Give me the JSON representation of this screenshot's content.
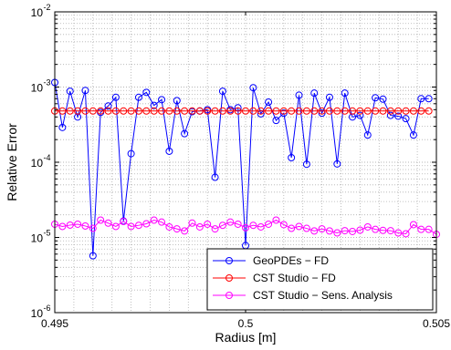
{
  "chart_data": {
    "type": "line",
    "xlabel": "Radius [m]",
    "ylabel": "Relative Error",
    "xlim": [
      0.495,
      0.505
    ],
    "ylim": [
      1e-06,
      0.01
    ],
    "yscale": "log",
    "grid": true,
    "legend_position": "bottom-right",
    "x_ticks": [
      {
        "value": 0.495,
        "label": "0.495"
      },
      {
        "value": 0.5,
        "label": "0.5"
      },
      {
        "value": 0.505,
        "label": "0.505"
      }
    ],
    "y_ticks": [
      {
        "value": 1e-06,
        "base": "10",
        "exp": "-6"
      },
      {
        "value": 1e-05,
        "base": "10",
        "exp": "-5"
      },
      {
        "value": 0.0001,
        "base": "10",
        "exp": "-4"
      },
      {
        "value": 0.001,
        "base": "10",
        "exp": "-3"
      },
      {
        "value": 0.01,
        "base": "10",
        "exp": "-2"
      }
    ],
    "series": [
      {
        "name": "GeoPDEs − FD",
        "color": "#0000ff",
        "x": [
          0.495,
          0.4952,
          0.4954,
          0.4956,
          0.4958,
          0.496,
          0.4962,
          0.4964,
          0.4966,
          0.4968,
          0.497,
          0.4972,
          0.4974,
          0.4976,
          0.4978,
          0.498,
          0.4982,
          0.4984,
          0.4986,
          0.4988,
          0.499,
          0.4992,
          0.4994,
          0.4996,
          0.4998,
          0.5,
          0.5002,
          0.5004,
          0.5006,
          0.5008,
          0.501,
          0.5012,
          0.5014,
          0.5016,
          0.5018,
          0.502,
          0.5022,
          0.5024,
          0.5026,
          0.5028,
          0.503,
          0.5032,
          0.5034,
          0.5036,
          0.5038,
          0.504,
          0.5042,
          0.5044,
          0.5046,
          0.5048
        ],
        "values": [
          0.00115,
          0.00029,
          0.00088,
          0.0004,
          0.0009,
          5.7e-06,
          0.00046,
          0.00056,
          0.00073,
          1.65e-05,
          0.00013,
          0.00073,
          0.00085,
          0.00057,
          0.00068,
          0.00014,
          0.00066,
          0.00024,
          0.00047,
          0.00048,
          0.0005,
          6.3e-05,
          0.00088,
          0.0005,
          0.00053,
          7.8e-06,
          0.00098,
          0.00044,
          0.00063,
          0.00036,
          0.00045,
          0.000115,
          0.00078,
          9.4e-05,
          0.00083,
          0.00045,
          0.00073,
          9.5e-05,
          0.00083,
          0.0004,
          0.00042,
          0.00023,
          0.00072,
          0.00069,
          0.00042,
          0.00041,
          0.00038,
          0.00023,
          0.0007,
          0.0007
        ]
      },
      {
        "name": "CST Studio − FD",
        "color": "#ff0000",
        "x": [
          0.495,
          0.4952,
          0.4954,
          0.4956,
          0.4958,
          0.496,
          0.4962,
          0.4964,
          0.4966,
          0.4968,
          0.497,
          0.4972,
          0.4974,
          0.4976,
          0.4978,
          0.498,
          0.4982,
          0.4984,
          0.4986,
          0.4988,
          0.499,
          0.4992,
          0.4994,
          0.4996,
          0.4998,
          0.5,
          0.5002,
          0.5004,
          0.5006,
          0.5008,
          0.501,
          0.5012,
          0.5014,
          0.5016,
          0.5018,
          0.502,
          0.5022,
          0.5024,
          0.5026,
          0.5028,
          0.503,
          0.5032,
          0.5034,
          0.5036,
          0.5038,
          0.504,
          0.5042,
          0.5044,
          0.5046,
          0.5048
        ],
        "values": [
          0.00048,
          0.00048,
          0.00048,
          0.00048,
          0.00048,
          0.00048,
          0.00048,
          0.00048,
          0.00048,
          0.00048,
          0.00048,
          0.00048,
          0.00048,
          0.00048,
          0.00048,
          0.00048,
          0.00048,
          0.00048,
          0.00048,
          0.00048,
          0.00048,
          0.00048,
          0.00048,
          0.00048,
          0.00048,
          0.00048,
          0.00048,
          0.00048,
          0.00048,
          0.00048,
          0.00048,
          0.00048,
          0.00048,
          0.00048,
          0.00048,
          0.00048,
          0.00048,
          0.00048,
          0.00048,
          0.00048,
          0.00048,
          0.00048,
          0.00048,
          0.00048,
          0.00048,
          0.00048,
          0.00048,
          0.00048,
          0.00048,
          0.00048
        ]
      },
      {
        "name": "CST Studio − Sens. Analysis",
        "color": "#ff00ff",
        "x": [
          0.495,
          0.4952,
          0.4954,
          0.4956,
          0.4958,
          0.496,
          0.4962,
          0.4964,
          0.4966,
          0.4968,
          0.497,
          0.4972,
          0.4974,
          0.4976,
          0.4978,
          0.498,
          0.4982,
          0.4984,
          0.4986,
          0.4988,
          0.499,
          0.4992,
          0.4994,
          0.4996,
          0.4998,
          0.5,
          0.5002,
          0.5004,
          0.5006,
          0.5008,
          0.501,
          0.5012,
          0.5014,
          0.5016,
          0.5018,
          0.502,
          0.5022,
          0.5024,
          0.5026,
          0.5028,
          0.503,
          0.5032,
          0.5034,
          0.5036,
          0.5038,
          0.504,
          0.5042,
          0.5044,
          0.5046,
          0.5048,
          0.505
        ],
        "values": [
          1.5e-05,
          1.4e-05,
          1.46e-05,
          1.5e-05,
          1.42e-05,
          1.32e-05,
          1.7e-05,
          1.55e-05,
          1.4e-05,
          1.63e-05,
          1.4e-05,
          1.45e-05,
          1.52e-05,
          1.7e-05,
          1.6e-05,
          1.38e-05,
          1.3e-05,
          1.22e-05,
          1.55e-05,
          1.38e-05,
          1.5e-05,
          1.3e-05,
          1.45e-05,
          1.6e-05,
          1.5e-05,
          1.35e-05,
          1.45e-05,
          1.38e-05,
          1.5e-05,
          1.7e-05,
          1.48e-05,
          1.32e-05,
          1.4e-05,
          1.32e-05,
          1.22e-05,
          1.3e-05,
          1.22e-05,
          1.15e-05,
          1.23e-05,
          1.2e-05,
          1.25e-05,
          1.38e-05,
          1.28e-05,
          1.24e-05,
          1.23e-05,
          1.15e-05,
          1.12e-05,
          1.48e-05,
          1.28e-05,
          1.28e-05,
          1.1e-05
        ]
      }
    ]
  }
}
